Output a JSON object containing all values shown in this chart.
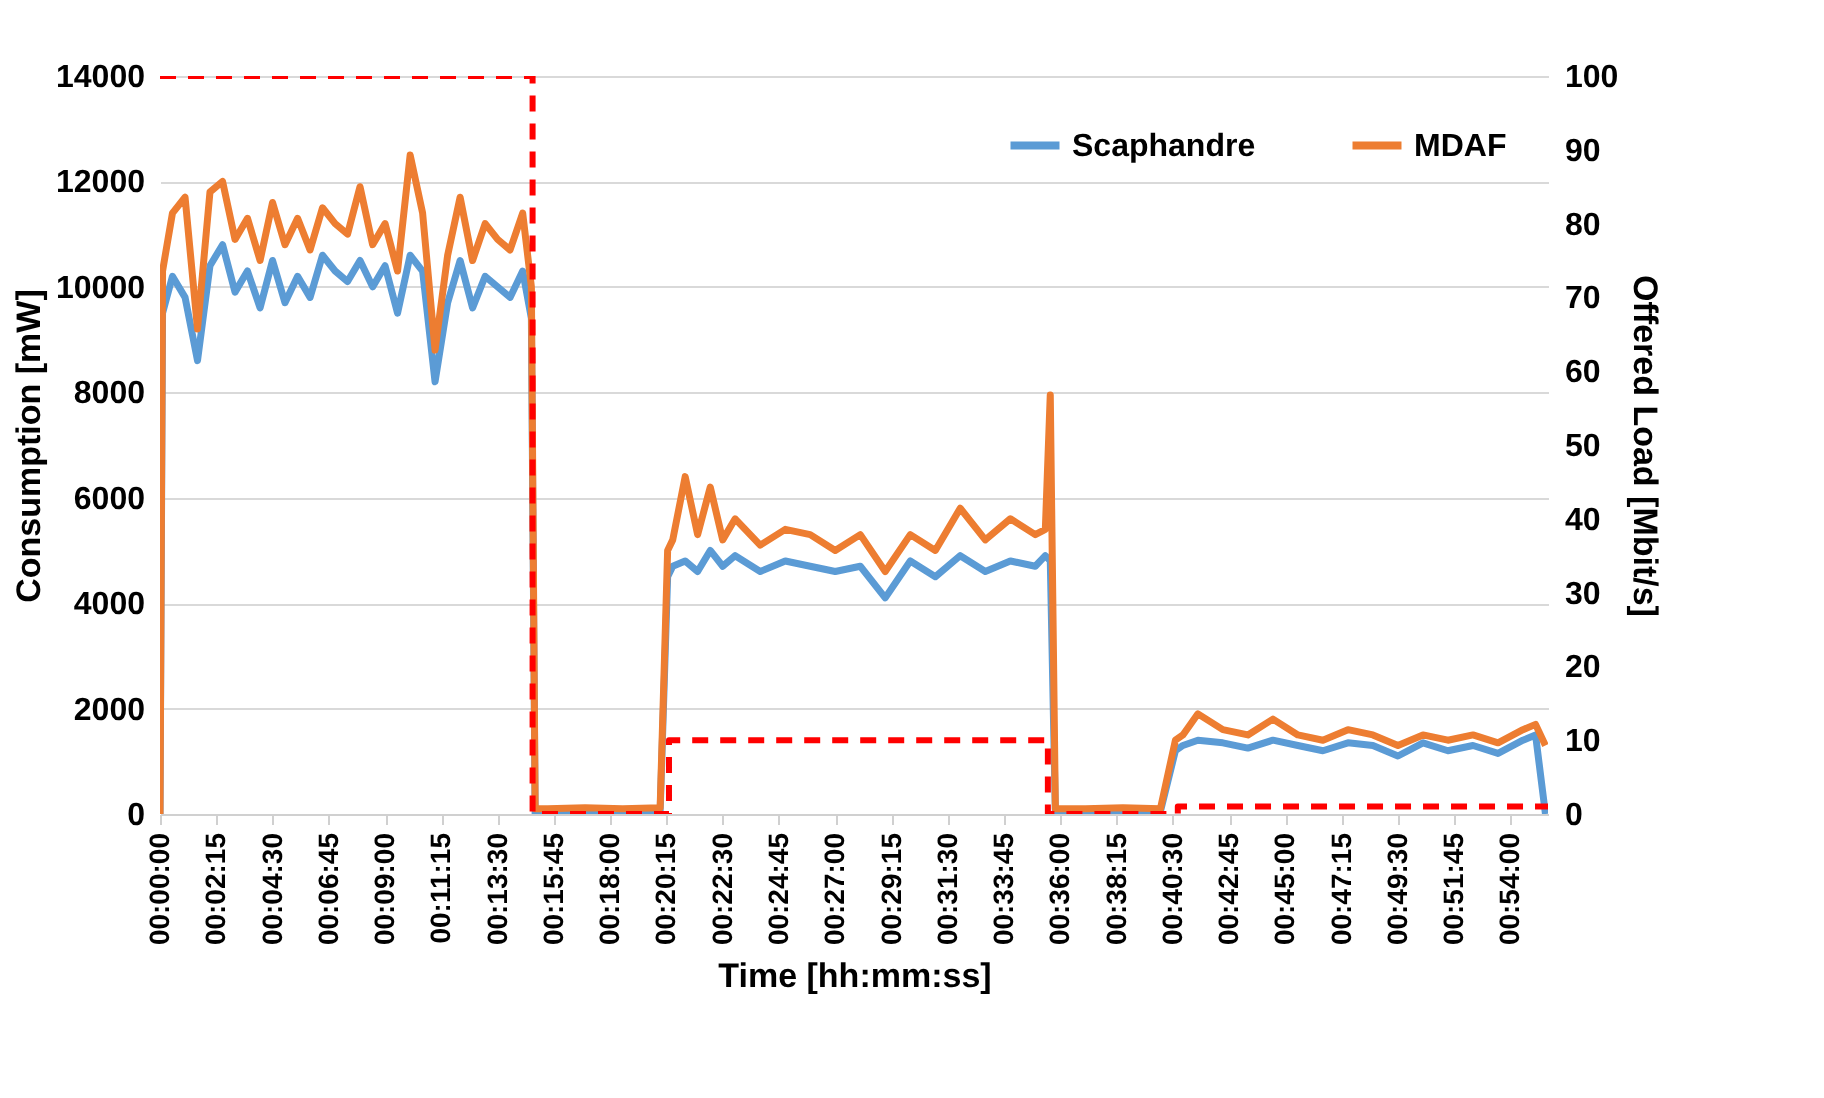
{
  "chart_data": {
    "type": "line",
    "xlabel": "Time [hh:mm:ss]",
    "ylabel": "Consumption [mW]",
    "y2label": "Offered Load [Mbit/s]",
    "x": [
      0,
      0.0017,
      0.0083,
      0.0167,
      0.025,
      0.0333,
      0.0417,
      0.05,
      0.0583,
      0.0667,
      0.075,
      0.0833,
      0.0917,
      0.1,
      0.1083,
      0.1167,
      0.125,
      0.1333,
      0.1417,
      0.15,
      0.1583,
      0.1667,
      0.175,
      0.1833,
      0.1917,
      0.2,
      0.2083,
      0.2167,
      0.225,
      0.2333,
      0.2417,
      0.2475,
      0.25,
      0.2583,
      0.2833,
      0.3083,
      0.3333,
      0.3383,
      0.3417,
      0.35,
      0.3583,
      0.3667,
      0.375,
      0.3833,
      0.4,
      0.4167,
      0.4333,
      0.45,
      0.4667,
      0.4833,
      0.5,
      0.5167,
      0.5333,
      0.55,
      0.5667,
      0.5833,
      0.59,
      0.5933,
      0.5967,
      0.6167,
      0.6417,
      0.6667,
      0.6767,
      0.6817,
      0.6917,
      0.7083,
      0.725,
      0.7417,
      0.7583,
      0.775,
      0.7917,
      0.8083,
      0.825,
      0.8417,
      0.8583,
      0.875,
      0.8917,
      0.9083,
      0.9167,
      0.9233
    ],
    "series": [
      {
        "name": "Scaphandre",
        "color": "#5b9bd5",
        "values": [
          0,
          9500,
          10200,
          9800,
          8600,
          10400,
          10800,
          9900,
          10300,
          9600,
          10500,
          9700,
          10200,
          9800,
          10600,
          10300,
          10100,
          10500,
          10000,
          10400,
          9500,
          10600,
          10300,
          8200,
          9700,
          10500,
          9600,
          10200,
          10000,
          9800,
          10300,
          9400,
          0,
          50,
          30,
          40,
          50,
          4500,
          4700,
          4800,
          4600,
          5000,
          4700,
          4900,
          4600,
          4800,
          4700,
          4600,
          4700,
          4100,
          4800,
          4500,
          4900,
          4600,
          4800,
          4700,
          4900,
          4800,
          30,
          30,
          40,
          50,
          1200,
          1300,
          1400,
          1350,
          1250,
          1400,
          1300,
          1200,
          1350,
          1300,
          1100,
          1350,
          1200,
          1300,
          1150,
          1400,
          1500,
          0
        ]
      },
      {
        "name": "MDAF",
        "color": "#ed7d31",
        "values": [
          0,
          10300,
          11400,
          11700,
          9200,
          11800,
          12000,
          10900,
          11300,
          10500,
          11600,
          10800,
          11300,
          10700,
          11500,
          11200,
          11000,
          11900,
          10800,
          11200,
          10300,
          12500,
          11400,
          8800,
          10600,
          11700,
          10500,
          11200,
          10900,
          10700,
          11400,
          10000,
          100,
          100,
          120,
          100,
          120,
          5000,
          5200,
          6400,
          5300,
          6200,
          5200,
          5600,
          5100,
          5400,
          5300,
          5000,
          5300,
          4600,
          5300,
          5000,
          5800,
          5200,
          5600,
          5300,
          5400,
          7950,
          100,
          100,
          120,
          100,
          1400,
          1500,
          1900,
          1600,
          1500,
          1800,
          1500,
          1400,
          1600,
          1500,
          1300,
          1500,
          1400,
          1500,
          1350,
          1600,
          1700,
          1300
        ]
      },
      {
        "color": "#ff0000",
        "axis": "y2",
        "line_style": "dashed",
        "x": [
          0,
          0.2483,
          0.2483,
          0.3392,
          0.3392,
          0.5917,
          0.5917,
          0.6783,
          0.6783,
          0.925
        ],
        "values": [
          100,
          100,
          0,
          0,
          10,
          10,
          0,
          0,
          1,
          1
        ]
      }
    ],
    "xlim": [
      0,
      0.925
    ],
    "xticks": [
      {
        "value": 0,
        "label": "00:00:00"
      },
      {
        "value": 0.0375,
        "label": "00:02:15"
      },
      {
        "value": 0.075,
        "label": "00:04:30"
      },
      {
        "value": 0.1125,
        "label": "00:06:45"
      },
      {
        "value": 0.15,
        "label": "00:09:00"
      },
      {
        "value": 0.1875,
        "label": "00:11:15"
      },
      {
        "value": 0.225,
        "label": "00:13:30"
      },
      {
        "value": 0.2625,
        "label": "00:15:45"
      },
      {
        "value": 0.3,
        "label": "00:18:00"
      },
      {
        "value": 0.3375,
        "label": "00:20:15"
      },
      {
        "value": 0.375,
        "label": "00:22:30"
      },
      {
        "value": 0.4125,
        "label": "00:24:45"
      },
      {
        "value": 0.45,
        "label": "00:27:00"
      },
      {
        "value": 0.4875,
        "label": "00:29:15"
      },
      {
        "value": 0.525,
        "label": "00:31:30"
      },
      {
        "value": 0.5625,
        "label": "00:33:45"
      },
      {
        "value": 0.6,
        "label": "00:36:00"
      },
      {
        "value": 0.6375,
        "label": "00:38:15"
      },
      {
        "value": 0.675,
        "label": "00:40:30"
      },
      {
        "value": 0.7125,
        "label": "00:42:45"
      },
      {
        "value": 0.75,
        "label": "00:45:00"
      },
      {
        "value": 0.7875,
        "label": "00:47:15"
      },
      {
        "value": 0.825,
        "label": "00:49:30"
      },
      {
        "value": 0.8625,
        "label": "00:51:45"
      },
      {
        "value": 0.9,
        "label": "00:54:00"
      }
    ],
    "ylim": [
      0,
      14000
    ],
    "yticks": [
      0,
      2000,
      4000,
      6000,
      8000,
      10000,
      12000,
      14000
    ],
    "y2lim": [
      0,
      100
    ],
    "y2ticks": [
      0,
      10,
      20,
      30,
      40,
      50,
      60,
      70,
      80,
      90,
      100
    ],
    "grid": "y",
    "legend": "top right",
    "marker": "none"
  }
}
